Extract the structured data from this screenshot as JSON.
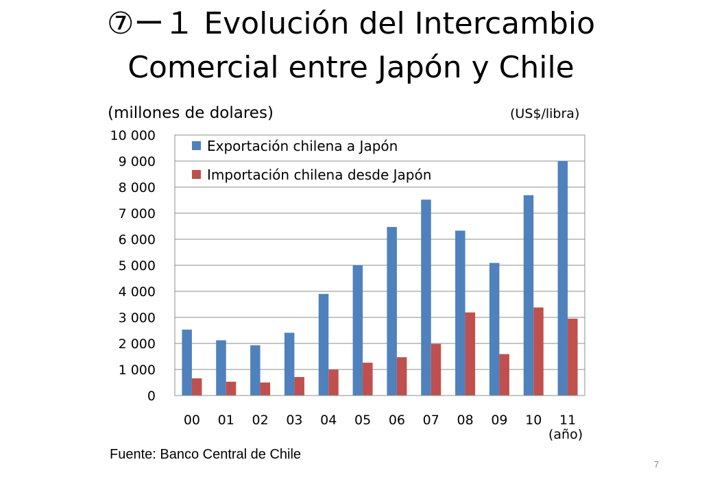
{
  "page": {
    "title_line1": "⑦ー１ Evolución del Intercambio",
    "title_line2": "Comercial entre Japón y Chile",
    "source": "Fuente: Banco Central de Chile",
    "page_number": "7"
  },
  "chart_data": {
    "type": "bar",
    "ylabel": "(millones de dolares)",
    "y2label": "(US$/libra)",
    "xunit": "(año)",
    "categories": [
      "00",
      "01",
      "02",
      "03",
      "04",
      "05",
      "06",
      "07",
      "08",
      "09",
      "10",
      "11"
    ],
    "series": [
      {
        "name": "Exportación chilena a Japón",
        "color": "#4F81BD",
        "values": [
          2530,
          2120,
          1930,
          2410,
          3900,
          5000,
          6470,
          7520,
          6330,
          5090,
          7690,
          9000
        ]
      },
      {
        "name": "Importación chilena desde Japón",
        "color": "#C0504D",
        "values": [
          660,
          530,
          500,
          710,
          990,
          1260,
          1470,
          1980,
          3190,
          1590,
          3380,
          2950
        ]
      }
    ],
    "ylim": [
      0,
      10000
    ],
    "yticks": [
      0,
      1000,
      2000,
      3000,
      4000,
      5000,
      6000,
      7000,
      8000,
      9000,
      10000
    ],
    "ytick_labels": [
      "0",
      "1 000",
      "2 000",
      "3 000",
      "4 000",
      "5 000",
      "6 000",
      "7 000",
      "8 000",
      "9 000",
      "10 000"
    ],
    "grid": true,
    "legend_position": "top-left"
  }
}
